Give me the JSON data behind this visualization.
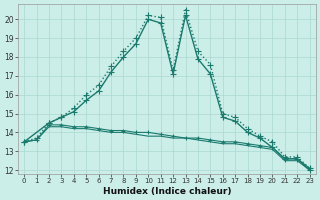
{
  "xlabel": "Humidex (Indice chaleur)",
  "background_color": "#cceee8",
  "grid_color": "#aad8d0",
  "line_color": "#1a7a6e",
  "xlim": [
    -0.5,
    23.5
  ],
  "ylim": [
    11.8,
    20.8
  ],
  "yticks": [
    12,
    13,
    14,
    15,
    16,
    17,
    18,
    19,
    20
  ],
  "xticks": [
    0,
    1,
    2,
    3,
    4,
    5,
    6,
    7,
    8,
    9,
    10,
    11,
    12,
    13,
    14,
    15,
    16,
    17,
    18,
    19,
    20,
    21,
    22,
    23
  ],
  "series": [
    {
      "x": [
        0,
        1,
        2,
        3,
        4,
        5,
        6,
        7,
        8,
        9,
        10,
        11,
        12,
        13,
        14,
        15,
        16,
        17,
        18,
        19,
        20,
        21,
        22,
        23
      ],
      "y": [
        13.5,
        13.7,
        14.5,
        14.8,
        15.3,
        16.0,
        16.5,
        17.5,
        18.3,
        19.0,
        20.2,
        20.1,
        17.3,
        20.5,
        18.3,
        17.6,
        15.0,
        14.8,
        14.2,
        13.8,
        13.5,
        12.7,
        12.7,
        12.1
      ],
      "linestyle": "dotted",
      "marker": "+",
      "markersize": 4,
      "linewidth": 1.0
    },
    {
      "x": [
        0,
        2,
        3,
        4,
        5,
        6,
        7,
        8,
        9,
        10,
        11,
        12,
        13,
        14,
        15,
        16,
        17,
        18,
        19,
        20,
        21,
        22,
        23
      ],
      "y": [
        13.5,
        14.5,
        14.8,
        15.1,
        15.7,
        16.2,
        17.2,
        18.0,
        18.7,
        20.0,
        19.8,
        17.1,
        20.2,
        17.9,
        17.1,
        14.8,
        14.6,
        14.0,
        13.7,
        13.2,
        12.6,
        12.6,
        12.0
      ],
      "linestyle": "solid",
      "marker": "+",
      "markersize": 4,
      "linewidth": 1.0
    },
    {
      "x": [
        0,
        1,
        2,
        3,
        4,
        5,
        6,
        7,
        8,
        9,
        10,
        11,
        12,
        13,
        14,
        15,
        16,
        17,
        18,
        19,
        20,
        21,
        22,
        23
      ],
      "y": [
        13.5,
        13.6,
        14.4,
        14.4,
        14.3,
        14.3,
        14.2,
        14.1,
        14.1,
        14.0,
        14.0,
        13.9,
        13.8,
        13.7,
        13.7,
        13.6,
        13.5,
        13.5,
        13.4,
        13.3,
        13.2,
        12.6,
        12.6,
        12.1
      ],
      "linestyle": "solid",
      "marker": "+",
      "markersize": 3,
      "linewidth": 0.8
    },
    {
      "x": [
        0,
        1,
        2,
        3,
        4,
        5,
        6,
        7,
        8,
        9,
        10,
        11,
        12,
        13,
        14,
        15,
        16,
        17,
        18,
        19,
        20,
        21,
        22,
        23
      ],
      "y": [
        13.5,
        13.6,
        14.3,
        14.3,
        14.2,
        14.2,
        14.1,
        14.0,
        14.0,
        13.9,
        13.8,
        13.8,
        13.7,
        13.7,
        13.6,
        13.5,
        13.4,
        13.4,
        13.3,
        13.2,
        13.1,
        12.5,
        12.5,
        12.0
      ],
      "linestyle": "solid",
      "marker": null,
      "markersize": 0,
      "linewidth": 0.8
    }
  ]
}
